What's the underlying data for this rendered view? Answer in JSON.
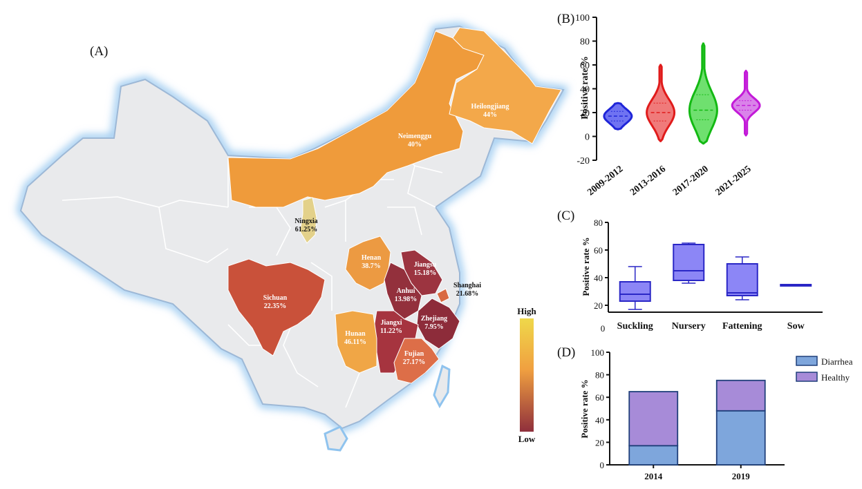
{
  "panels": {
    "a": "(A)",
    "b": "(B)",
    "c": "(C)",
    "d": "(D)"
  },
  "colors": {
    "land": "#e9eaec",
    "glow": "#8fc3ee",
    "border": "#9db8d6",
    "scale_high": "#efd84a",
    "scale_mid": "#f0a040",
    "scale_low": "#8f2f3c"
  },
  "chart_data": [
    {
      "type": "map",
      "panel": "(A)",
      "legend": {
        "high": "High",
        "low": "Low"
      },
      "regions": [
        {
          "name": "Heilongjiang",
          "value": "44%"
        },
        {
          "name": "Neimenggu",
          "value": "40%"
        },
        {
          "name": "Ningxia",
          "value": "61.25%"
        },
        {
          "name": "Henan",
          "value": "38.7%"
        },
        {
          "name": "Jiangsu",
          "value": "15.18%"
        },
        {
          "name": "Anhui",
          "value": "13.98%"
        },
        {
          "name": "Shanghai",
          "value": "21.68%"
        },
        {
          "name": "Sichuan",
          "value": "22.35%"
        },
        {
          "name": "Zhejiang",
          "value": "7.95%"
        },
        {
          "name": "Jiangxi",
          "value": "11.22%"
        },
        {
          "name": "Hunan",
          "value": "46.11%"
        },
        {
          "name": "Fujian",
          "value": "27.17%"
        }
      ]
    },
    {
      "type": "violin",
      "panel": "(B)",
      "ylabel": "Positive rate %",
      "ylim": [
        -20,
        100
      ],
      "yticks": [
        -20,
        0,
        20,
        40,
        60,
        80,
        100
      ],
      "categories": [
        "2009-2012",
        "2013-2016",
        "2017-2020",
        "2021-2025"
      ],
      "series": [
        {
          "category": "2009-2012",
          "color": "#1f25d8",
          "fill": "#6f73f2",
          "min": 6,
          "max": 28,
          "median": 17,
          "q1": 13,
          "q3": 21
        },
        {
          "category": "2013-2016",
          "color": "#e01b1b",
          "fill": "#f07a7a",
          "min": -4,
          "max": 60,
          "median": 20,
          "q1": 13,
          "q3": 28
        },
        {
          "category": "2017-2020",
          "color": "#13b913",
          "fill": "#6fe06f",
          "min": -6,
          "max": 78,
          "median": 22,
          "q1": 14,
          "q3": 35
        },
        {
          "category": "2021-2025",
          "color": "#c31ad8",
          "fill": "#da83ea",
          "min": 1,
          "max": 55,
          "median": 26,
          "q1": 22,
          "q3": 30
        }
      ]
    },
    {
      "type": "box",
      "panel": "(C)",
      "ylabel": "Positive rate %",
      "ylim": [
        15,
        80
      ],
      "yticks": [
        20,
        40,
        60,
        80
      ],
      "baseline_label": "0",
      "categories": [
        "Suckling",
        "Nursery",
        "Fattening",
        "Sow"
      ],
      "boxes": [
        {
          "category": "Suckling",
          "min": 17,
          "q1": 23,
          "median": 28,
          "q3": 37,
          "max": 48
        },
        {
          "category": "Nursery",
          "min": 36,
          "q1": 38,
          "median": 45,
          "q3": 64,
          "max": 65
        },
        {
          "category": "Fattening",
          "min": 24,
          "q1": 27,
          "median": 29,
          "q3": 50,
          "max": 55
        },
        {
          "category": "Sow",
          "min": 34,
          "q1": 34,
          "median": 35,
          "q3": 35,
          "max": 35
        }
      ],
      "box_fill": "#8c86f6",
      "box_stroke": "#2a27c6"
    },
    {
      "type": "bar",
      "panel": "(D)",
      "stacked": true,
      "ylabel": "Positive rate %",
      "ylim": [
        0,
        100
      ],
      "yticks": [
        0,
        20,
        40,
        60,
        80,
        100
      ],
      "categories": [
        "2014",
        "2019"
      ],
      "series": [
        {
          "name": "Diarrhea",
          "color": "#7ea6dc",
          "values": [
            17,
            48
          ]
        },
        {
          "name": "Healthy",
          "color": "#a78bd8",
          "values": [
            48,
            27
          ]
        }
      ],
      "legend_position": "top-right"
    }
  ]
}
